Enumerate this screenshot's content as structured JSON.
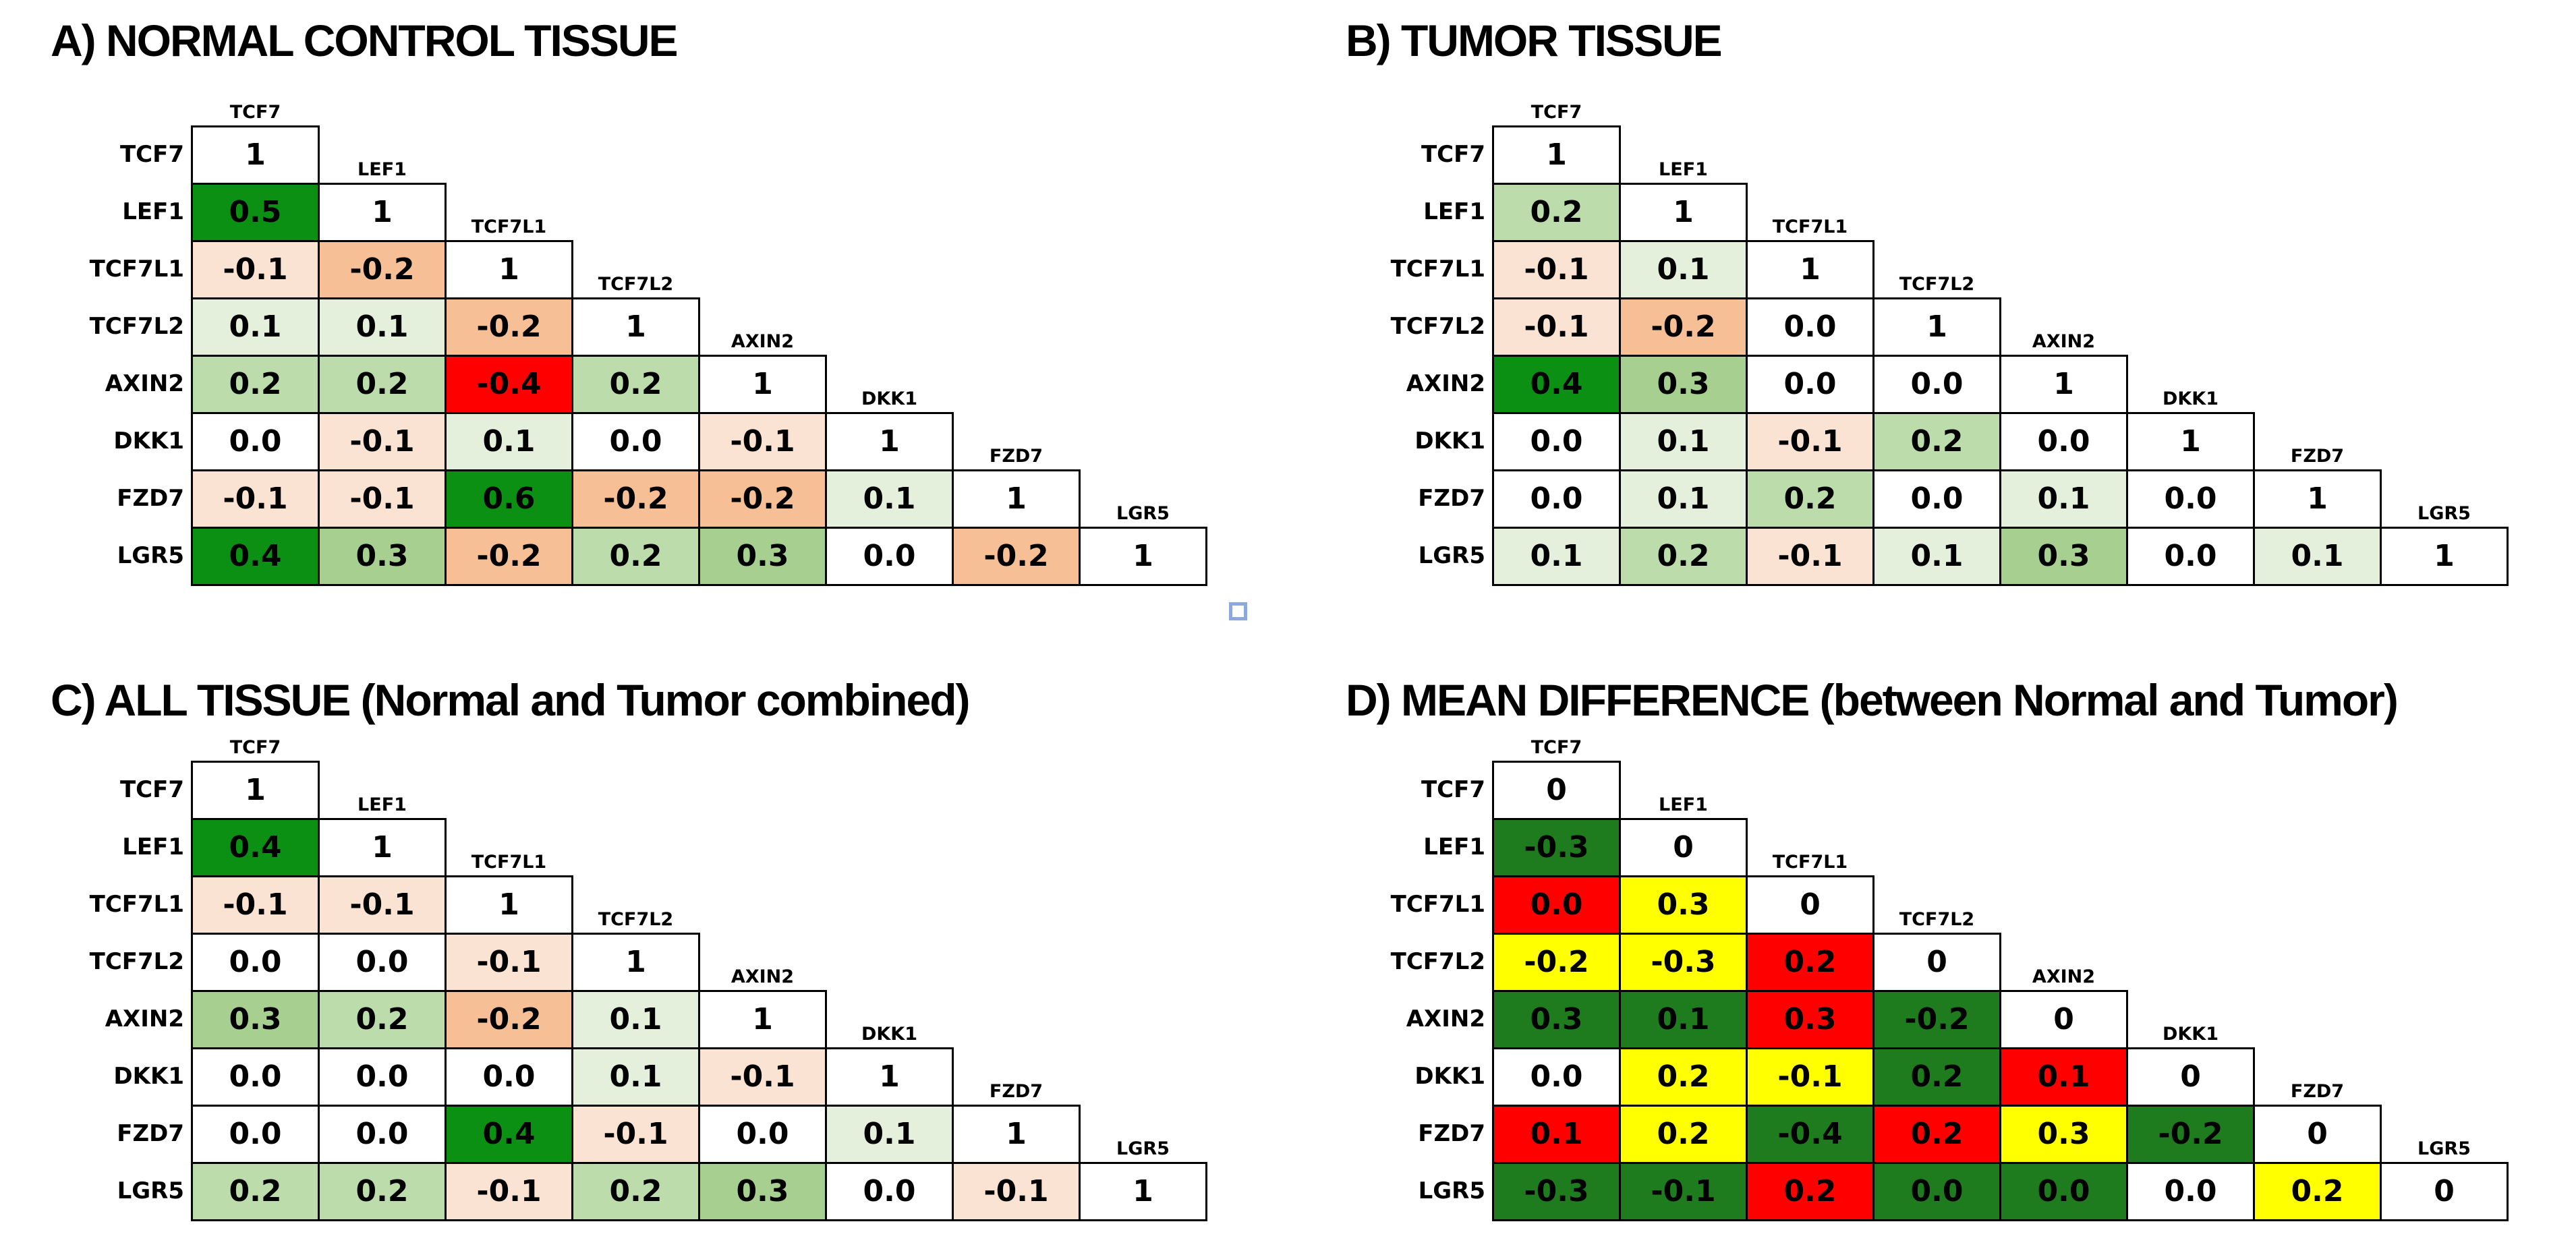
{
  "chart_data": {
    "type": "heatmap",
    "layout": "four lower-triangular gene-correlation matrices arranged in a 2x2 grid; column headers stair-step along the diagonal",
    "categories": [
      "TCF7",
      "LEF1",
      "TCF7L1",
      "TCF7L2",
      "AXIN2",
      "DKK1",
      "FZD7",
      "LGR5"
    ],
    "colors": {
      "dg": "#0b9014",
      "g3": "#a6cf90",
      "g2": "#bcdcab",
      "g1": "#e4f0dc",
      "w": "#ffffff",
      "p1": "#fbe3d4",
      "o2": "#f6bf96",
      "rd": "#ff0000",
      "Dg": "#1e7b1e",
      "Dy": "#ffff00",
      "Dr": "#ff0000"
    },
    "panels": [
      {
        "id": "A",
        "title": "A) NORMAL CONTROL TISSUE",
        "diagonal": "1",
        "rows": [
          [],
          [
            {
              "v": "0.5",
              "c": "dg"
            }
          ],
          [
            {
              "v": "-0.1",
              "c": "p1"
            },
            {
              "v": "-0.2",
              "c": "o2"
            }
          ],
          [
            {
              "v": "0.1",
              "c": "g1"
            },
            {
              "v": "0.1",
              "c": "g1"
            },
            {
              "v": "-0.2",
              "c": "o2"
            }
          ],
          [
            {
              "v": "0.2",
              "c": "g2"
            },
            {
              "v": "0.2",
              "c": "g2"
            },
            {
              "v": "-0.4",
              "c": "rd"
            },
            {
              "v": "0.2",
              "c": "g2"
            }
          ],
          [
            {
              "v": "0.0",
              "c": "w"
            },
            {
              "v": "-0.1",
              "c": "p1"
            },
            {
              "v": "0.1",
              "c": "g1"
            },
            {
              "v": "0.0",
              "c": "w"
            },
            {
              "v": "-0.1",
              "c": "p1"
            }
          ],
          [
            {
              "v": "-0.1",
              "c": "p1"
            },
            {
              "v": "-0.1",
              "c": "p1"
            },
            {
              "v": "0.6",
              "c": "dg"
            },
            {
              "v": "-0.2",
              "c": "o2"
            },
            {
              "v": "-0.2",
              "c": "o2"
            },
            {
              "v": "0.1",
              "c": "g1"
            }
          ],
          [
            {
              "v": "0.4",
              "c": "dg"
            },
            {
              "v": "0.3",
              "c": "g3"
            },
            {
              "v": "-0.2",
              "c": "o2"
            },
            {
              "v": "0.2",
              "c": "g2"
            },
            {
              "v": "0.3",
              "c": "g3"
            },
            {
              "v": "0.0",
              "c": "w"
            },
            {
              "v": "-0.2",
              "c": "o2"
            }
          ]
        ]
      },
      {
        "id": "B",
        "title": "B) TUMOR TISSUE",
        "diagonal": "1",
        "rows": [
          [],
          [
            {
              "v": "0.2",
              "c": "g2"
            }
          ],
          [
            {
              "v": "-0.1",
              "c": "p1"
            },
            {
              "v": "0.1",
              "c": "g1"
            }
          ],
          [
            {
              "v": "-0.1",
              "c": "p1"
            },
            {
              "v": "-0.2",
              "c": "o2"
            },
            {
              "v": "0.0",
              "c": "w"
            }
          ],
          [
            {
              "v": "0.4",
              "c": "dg"
            },
            {
              "v": "0.3",
              "c": "g3"
            },
            {
              "v": "0.0",
              "c": "w"
            },
            {
              "v": "0.0",
              "c": "w"
            }
          ],
          [
            {
              "v": "0.0",
              "c": "w"
            },
            {
              "v": "0.1",
              "c": "g1"
            },
            {
              "v": "-0.1",
              "c": "p1"
            },
            {
              "v": "0.2",
              "c": "g2"
            },
            {
              "v": "0.0",
              "c": "w"
            }
          ],
          [
            {
              "v": "0.0",
              "c": "w"
            },
            {
              "v": "0.1",
              "c": "g1"
            },
            {
              "v": "0.2",
              "c": "g2"
            },
            {
              "v": "0.0",
              "c": "w"
            },
            {
              "v": "0.1",
              "c": "g1"
            },
            {
              "v": "0.0",
              "c": "w"
            }
          ],
          [
            {
              "v": "0.1",
              "c": "g1"
            },
            {
              "v": "0.2",
              "c": "g2"
            },
            {
              "v": "-0.1",
              "c": "p1"
            },
            {
              "v": "0.1",
              "c": "g1"
            },
            {
              "v": "0.3",
              "c": "g3"
            },
            {
              "v": "0.0",
              "c": "w"
            },
            {
              "v": "0.1",
              "c": "g1"
            }
          ]
        ]
      },
      {
        "id": "C",
        "title": "C) ALL TISSUE (Normal and Tumor combined)",
        "diagonal": "1",
        "rows": [
          [],
          [
            {
              "v": "0.4",
              "c": "dg"
            }
          ],
          [
            {
              "v": "-0.1",
              "c": "p1"
            },
            {
              "v": "-0.1",
              "c": "p1"
            }
          ],
          [
            {
              "v": "0.0",
              "c": "w"
            },
            {
              "v": "0.0",
              "c": "w"
            },
            {
              "v": "-0.1",
              "c": "p1"
            }
          ],
          [
            {
              "v": "0.3",
              "c": "g3"
            },
            {
              "v": "0.2",
              "c": "g2"
            },
            {
              "v": "-0.2",
              "c": "o2"
            },
            {
              "v": "0.1",
              "c": "g1"
            }
          ],
          [
            {
              "v": "0.0",
              "c": "w"
            },
            {
              "v": "0.0",
              "c": "w"
            },
            {
              "v": "0.0",
              "c": "w"
            },
            {
              "v": "0.1",
              "c": "g1"
            },
            {
              "v": "-0.1",
              "c": "p1"
            }
          ],
          [
            {
              "v": "0.0",
              "c": "w"
            },
            {
              "v": "0.0",
              "c": "w"
            },
            {
              "v": "0.4",
              "c": "dg"
            },
            {
              "v": "-0.1",
              "c": "p1"
            },
            {
              "v": "0.0",
              "c": "w"
            },
            {
              "v": "0.1",
              "c": "g1"
            }
          ],
          [
            {
              "v": "0.2",
              "c": "g2"
            },
            {
              "v": "0.2",
              "c": "g2"
            },
            {
              "v": "-0.1",
              "c": "p1"
            },
            {
              "v": "0.2",
              "c": "g2"
            },
            {
              "v": "0.3",
              "c": "g3"
            },
            {
              "v": "0.0",
              "c": "w"
            },
            {
              "v": "-0.1",
              "c": "p1"
            }
          ]
        ]
      },
      {
        "id": "D",
        "title": "D) MEAN DIFFERENCE (between Normal and Tumor)",
        "diagonal": "0",
        "rows": [
          [],
          [
            {
              "v": "-0.3",
              "c": "Dg"
            }
          ],
          [
            {
              "v": "0.0",
              "c": "Dr"
            },
            {
              "v": "0.3",
              "c": "Dy"
            }
          ],
          [
            {
              "v": "-0.2",
              "c": "Dy"
            },
            {
              "v": "-0.3",
              "c": "Dy"
            },
            {
              "v": "0.2",
              "c": "Dr"
            }
          ],
          [
            {
              "v": "0.3",
              "c": "Dg"
            },
            {
              "v": "0.1",
              "c": "Dg"
            },
            {
              "v": "0.3",
              "c": "Dr"
            },
            {
              "v": "-0.2",
              "c": "Dg"
            }
          ],
          [
            {
              "v": "0.0",
              "c": "w"
            },
            {
              "v": "0.2",
              "c": "Dy"
            },
            {
              "v": "-0.1",
              "c": "Dy"
            },
            {
              "v": "0.2",
              "c": "Dg"
            },
            {
              "v": "0.1",
              "c": "Dr"
            }
          ],
          [
            {
              "v": "0.1",
              "c": "Dr"
            },
            {
              "v": "0.2",
              "c": "Dy"
            },
            {
              "v": "-0.4",
              "c": "Dg"
            },
            {
              "v": "0.2",
              "c": "Dr"
            },
            {
              "v": "0.3",
              "c": "Dy"
            },
            {
              "v": "-0.2",
              "c": "Dg"
            }
          ],
          [
            {
              "v": "-0.3",
              "c": "Dg"
            },
            {
              "v": "-0.1",
              "c": "Dg"
            },
            {
              "v": "0.2",
              "c": "Dr"
            },
            {
              "v": "0.0",
              "c": "Dg"
            },
            {
              "v": "0.0",
              "c": "Dg"
            },
            {
              "v": "0.0",
              "c": "w"
            },
            {
              "v": "0.2",
              "c": "Dy"
            }
          ]
        ]
      }
    ]
  },
  "selection_square": {
    "color": "#8da8da"
  }
}
